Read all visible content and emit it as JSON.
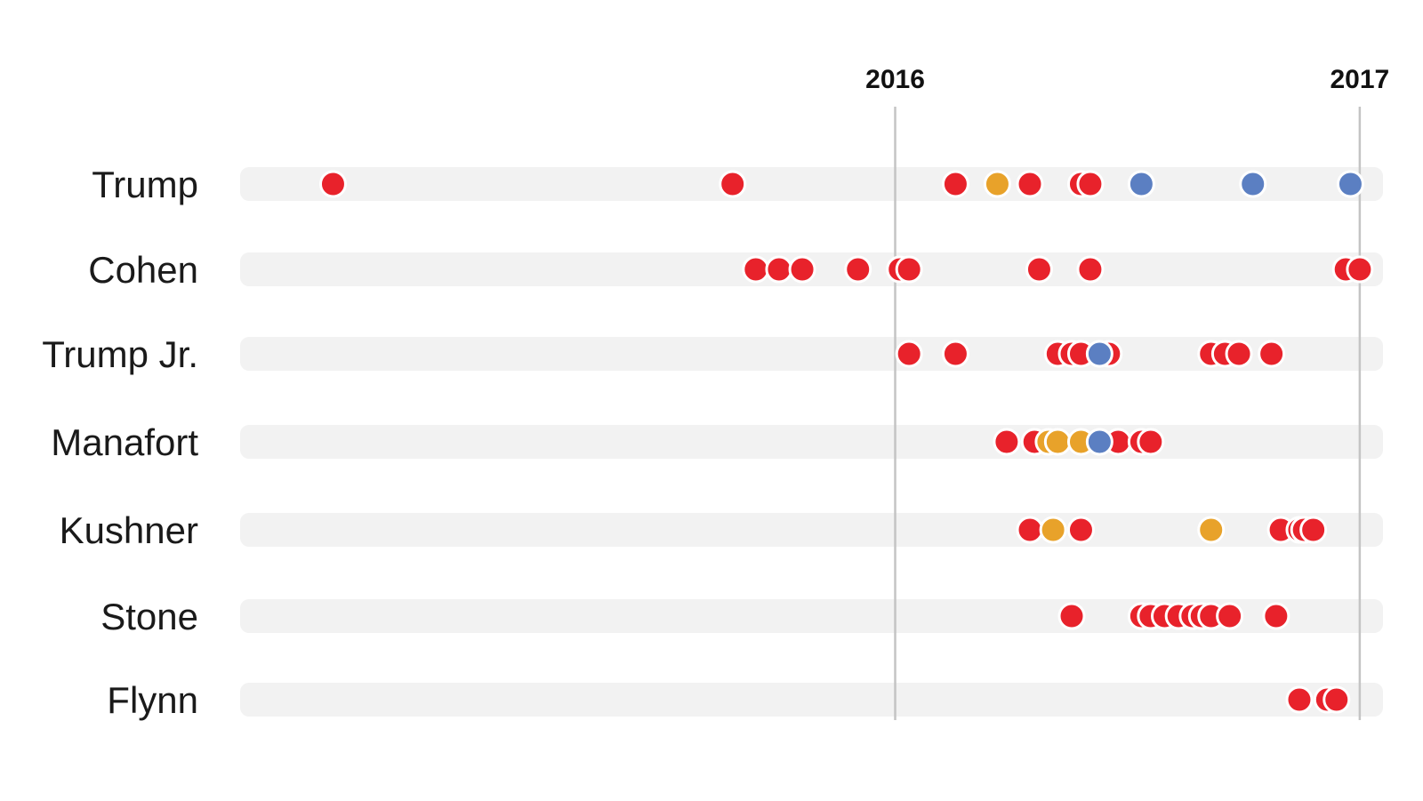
{
  "chart_data": {
    "type": "scatter",
    "title": "",
    "xlabel": "",
    "ylabel": "",
    "x_axis": {
      "unit": "year",
      "domain": [
        2014.59,
        2017.05
      ],
      "ticks": [
        {
          "value": 2016,
          "label": "2016"
        },
        {
          "value": 2017,
          "label": "2017"
        }
      ]
    },
    "categories": [
      "Trump",
      "Cohen",
      "Trump Jr.",
      "Manafort",
      "Kushner",
      "Stone",
      "Flynn"
    ],
    "colors": {
      "red": "#e8222b",
      "orange": "#e8a22a",
      "blue": "#5b7fc2"
    },
    "series": [
      {
        "row": "Trump",
        "points": [
          {
            "x": 2014.79,
            "color": "red"
          },
          {
            "x": 2015.65,
            "color": "red"
          },
          {
            "x": 2016.13,
            "color": "red"
          },
          {
            "x": 2016.22,
            "color": "orange"
          },
          {
            "x": 2016.29,
            "color": "red"
          },
          {
            "x": 2016.4,
            "color": "red"
          },
          {
            "x": 2016.42,
            "color": "red"
          },
          {
            "x": 2016.53,
            "color": "blue"
          },
          {
            "x": 2016.77,
            "color": "blue"
          },
          {
            "x": 2016.98,
            "color": "blue"
          }
        ]
      },
      {
        "row": "Cohen",
        "points": [
          {
            "x": 2015.7,
            "color": "red"
          },
          {
            "x": 2015.75,
            "color": "red"
          },
          {
            "x": 2015.8,
            "color": "red"
          },
          {
            "x": 2015.92,
            "color": "red"
          },
          {
            "x": 2016.01,
            "color": "red"
          },
          {
            "x": 2016.03,
            "color": "red"
          },
          {
            "x": 2016.31,
            "color": "red"
          },
          {
            "x": 2016.42,
            "color": "red"
          },
          {
            "x": 2016.97,
            "color": "red"
          },
          {
            "x": 2017.0,
            "color": "red"
          }
        ]
      },
      {
        "row": "Trump Jr.",
        "points": [
          {
            "x": 2016.03,
            "color": "red"
          },
          {
            "x": 2016.13,
            "color": "red"
          },
          {
            "x": 2016.35,
            "color": "red"
          },
          {
            "x": 2016.38,
            "color": "red"
          },
          {
            "x": 2016.4,
            "color": "red"
          },
          {
            "x": 2016.46,
            "color": "red"
          },
          {
            "x": 2016.44,
            "color": "blue"
          },
          {
            "x": 2016.68,
            "color": "red"
          },
          {
            "x": 2016.71,
            "color": "red"
          },
          {
            "x": 2016.74,
            "color": "red"
          },
          {
            "x": 2016.81,
            "color": "red"
          }
        ]
      },
      {
        "row": "Manafort",
        "points": [
          {
            "x": 2016.24,
            "color": "red"
          },
          {
            "x": 2016.3,
            "color": "red"
          },
          {
            "x": 2016.33,
            "color": "orange"
          },
          {
            "x": 2016.35,
            "color": "orange"
          },
          {
            "x": 2016.4,
            "color": "orange"
          },
          {
            "x": 2016.48,
            "color": "red"
          },
          {
            "x": 2016.44,
            "color": "blue"
          },
          {
            "x": 2016.53,
            "color": "red"
          },
          {
            "x": 2016.55,
            "color": "red"
          }
        ]
      },
      {
        "row": "Kushner",
        "points": [
          {
            "x": 2016.29,
            "color": "red"
          },
          {
            "x": 2016.34,
            "color": "orange"
          },
          {
            "x": 2016.4,
            "color": "red"
          },
          {
            "x": 2016.68,
            "color": "orange"
          },
          {
            "x": 2016.83,
            "color": "red"
          },
          {
            "x": 2016.87,
            "color": "red"
          },
          {
            "x": 2016.88,
            "color": "red"
          },
          {
            "x": 2016.9,
            "color": "red"
          }
        ]
      },
      {
        "row": "Stone",
        "points": [
          {
            "x": 2016.38,
            "color": "red"
          },
          {
            "x": 2016.53,
            "color": "red"
          },
          {
            "x": 2016.55,
            "color": "red"
          },
          {
            "x": 2016.58,
            "color": "red"
          },
          {
            "x": 2016.61,
            "color": "red"
          },
          {
            "x": 2016.64,
            "color": "red"
          },
          {
            "x": 2016.66,
            "color": "red"
          },
          {
            "x": 2016.68,
            "color": "red"
          },
          {
            "x": 2016.72,
            "color": "red"
          },
          {
            "x": 2016.82,
            "color": "red"
          }
        ]
      },
      {
        "row": "Flynn",
        "points": [
          {
            "x": 2016.87,
            "color": "red"
          },
          {
            "x": 2016.93,
            "color": "red"
          },
          {
            "x": 2016.95,
            "color": "red"
          }
        ]
      }
    ]
  }
}
